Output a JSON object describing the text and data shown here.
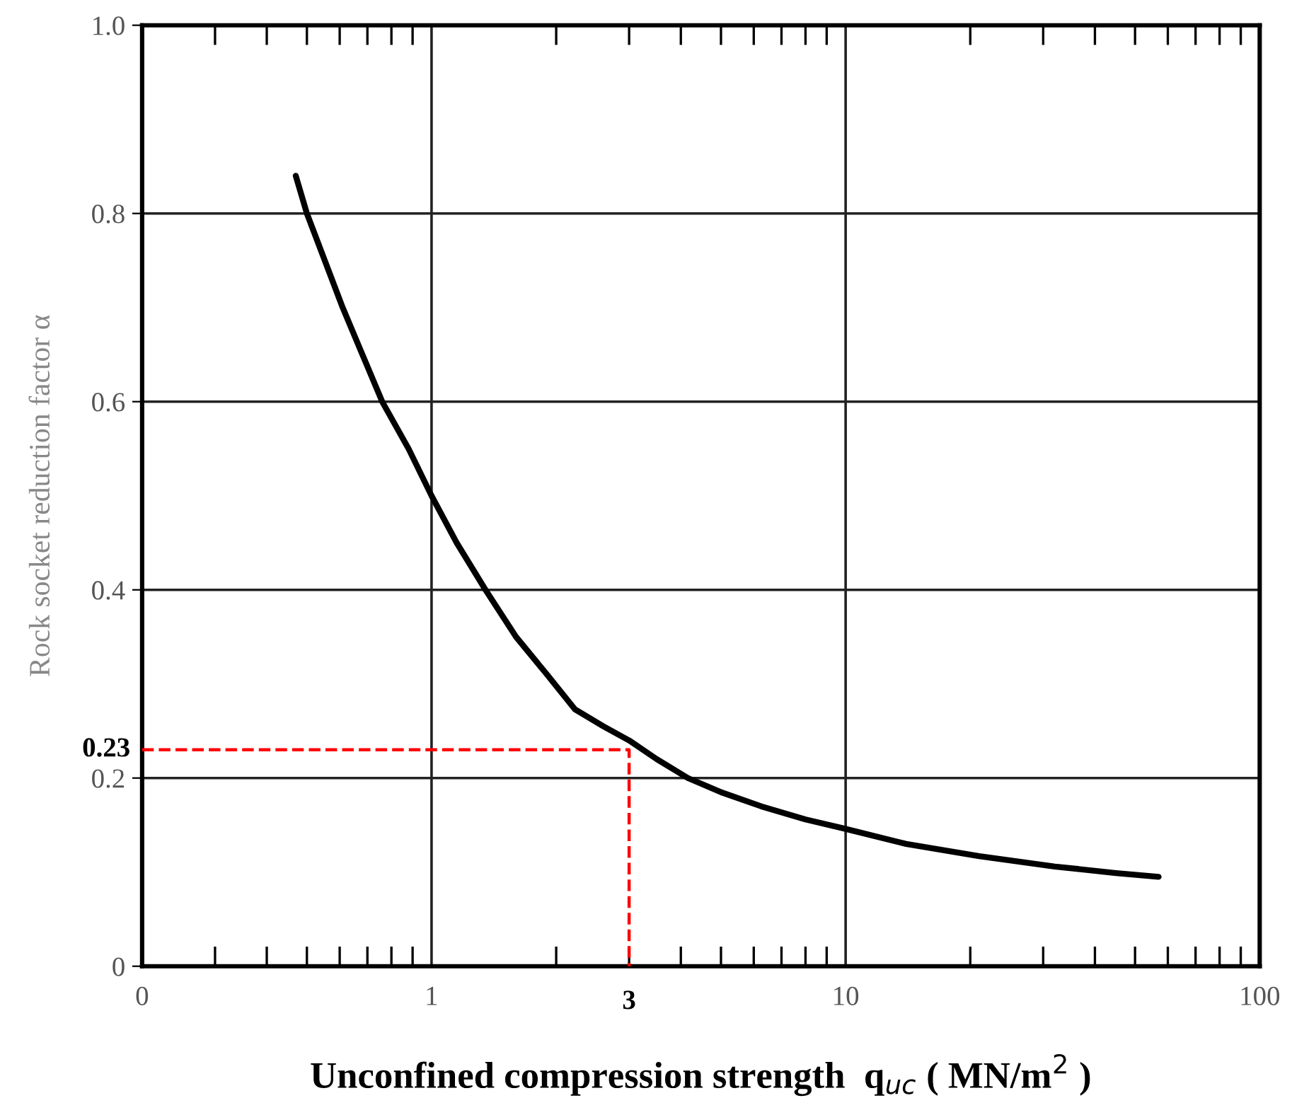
{
  "chart_data": {
    "type": "line",
    "xlabel": "Unconfined compression strength  q$_{uc}$ ( MN/m$^{2}$ )",
    "ylabel": "Rock socket reduction factor α",
    "log": "x",
    "xlim": [
      0.2,
      100
    ],
    "xticks": [
      {
        "value": 0.2,
        "label": "0"
      },
      1,
      10,
      100
    ],
    "ylim": [
      0,
      1.0
    ],
    "yticks": [
      0,
      0.2,
      0.4,
      0.6,
      {
        "value": 0.8,
        "label": "0.8"
      },
      {
        "value": 1.0,
        "label": "1.0"
      }
    ],
    "grid": true,
    "marker": "none",
    "series": [
      {
        "color": "#000000",
        "line_style": "solid",
        "x": [
          0.47,
          0.5,
          0.61,
          0.76,
          0.88,
          1,
          1.15,
          1.35,
          1.6,
          1.9,
          2.22,
          2.6,
          3,
          3.5,
          4.16,
          5,
          6.25,
          8,
          10,
          14,
          21,
          32,
          45,
          57
        ],
        "values": [
          0.84,
          0.8,
          0.7,
          0.6,
          0.55,
          0.5,
          0.45,
          0.4,
          0.35,
          0.31,
          0.273,
          0.255,
          0.24,
          0.22,
          0.2,
          0.185,
          0.17,
          0.156,
          0.146,
          0.13,
          0.117,
          0.106,
          0.099,
          0.095
        ]
      },
      {
        "color": "#ff0000",
        "line_style": "dashed",
        "x": [
          0.2,
          3,
          3
        ],
        "values": [
          0.23,
          0.23,
          0
        ]
      }
    ],
    "annotations": [
      {
        "text": "0.23",
        "x": 0.2,
        "y": 0.23
      },
      {
        "text": "3",
        "x": 3,
        "y": 0
      }
    ]
  }
}
